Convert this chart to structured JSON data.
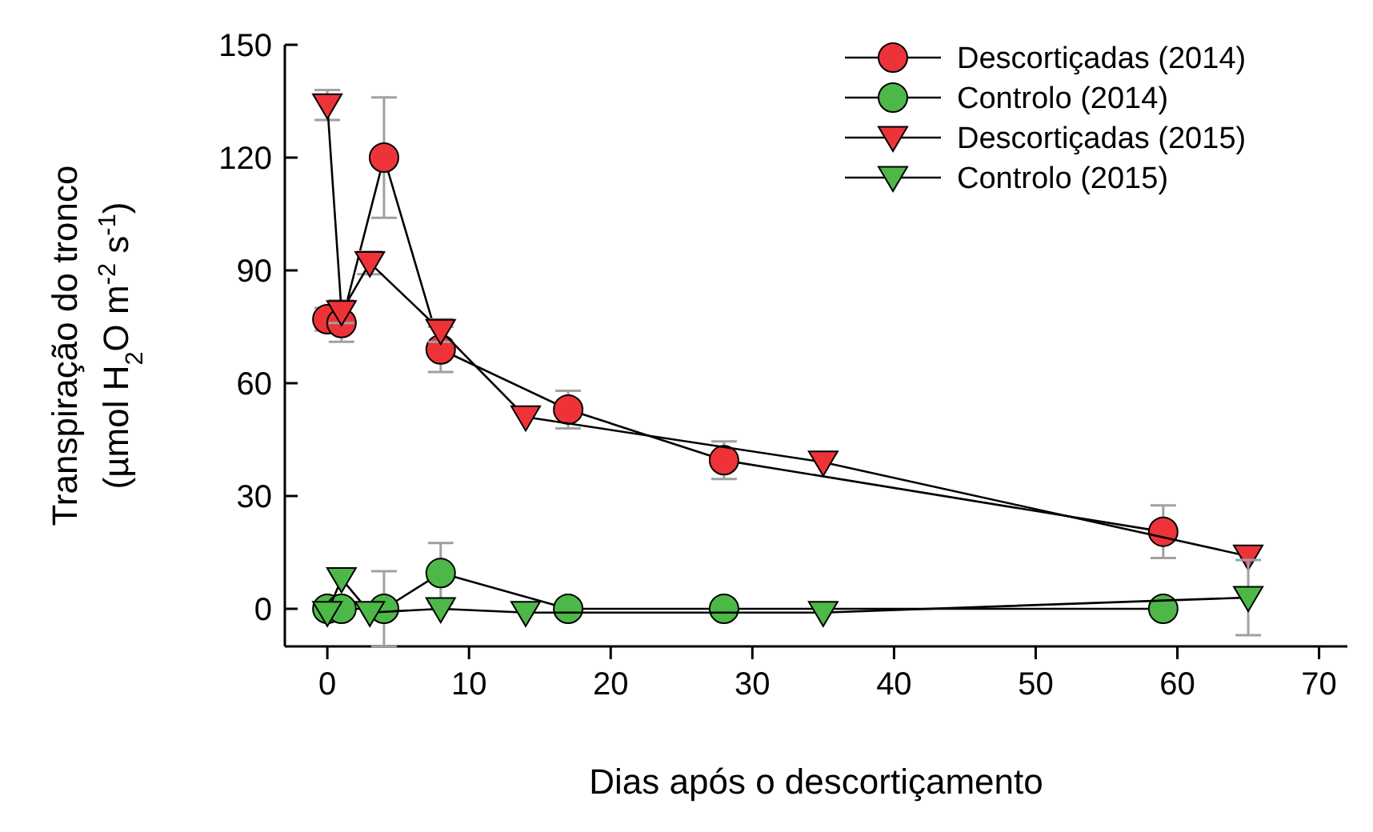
{
  "chart_data": {
    "type": "line",
    "xlabel": "Dias após o descortiçamento",
    "ylabel": "Transpiração do tronco (µmol H$_{2}$O m$^{-2}$ s$^{-1}$)",
    "xlim": [
      -3,
      72
    ],
    "ylim": [
      -10,
      150
    ],
    "xticks": [
      0,
      10,
      20,
      30,
      40,
      50,
      60,
      70
    ],
    "yticks": [
      0,
      30,
      60,
      90,
      120,
      150
    ],
    "grid": false,
    "legend": "top right",
    "series": [
      {
        "name": "Descortiçadas (2014)",
        "color": "#ee3338",
        "marker": "circle",
        "x": [
          0,
          1,
          4,
          8,
          17,
          28,
          59
        ],
        "values": [
          77,
          76,
          120,
          69,
          53,
          39.5,
          20.5
        ],
        "errors": [
          3,
          5,
          16,
          6,
          5,
          5,
          7
        ]
      },
      {
        "name": "Controlo (2014)",
        "color": "#4db848",
        "marker": "circle",
        "x": [
          0,
          1,
          4,
          8,
          17,
          28,
          59
        ],
        "values": [
          0,
          0,
          0,
          9.5,
          0,
          0,
          0
        ],
        "errors": [
          null,
          null,
          10,
          8,
          null,
          null,
          null
        ]
      },
      {
        "name": "Descortiçadas (2015)",
        "color": "#ee3338",
        "marker": "triangle",
        "x": [
          0,
          1,
          3,
          8,
          14,
          35,
          65
        ],
        "values": [
          134,
          79,
          92,
          74,
          51,
          39,
          14
        ],
        "errors": [
          4,
          3,
          3,
          3,
          null,
          null,
          null
        ]
      },
      {
        "name": "Controlo (2015)",
        "color": "#4db848",
        "marker": "triangle",
        "x": [
          0,
          1,
          3,
          8,
          14,
          35,
          65
        ],
        "values": [
          -1,
          8,
          -1,
          0,
          -1,
          -1,
          3
        ],
        "errors": [
          null,
          null,
          null,
          null,
          null,
          null,
          10
        ]
      }
    ]
  }
}
